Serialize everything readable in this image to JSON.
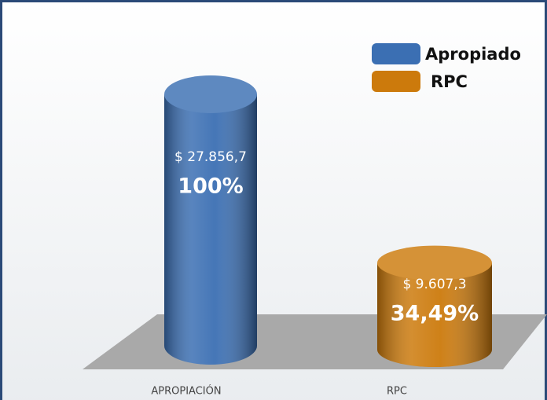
{
  "chart_data": {
    "type": "cylinder",
    "categories": [
      "APROPIACIÓN",
      "RPC"
    ],
    "series": [
      {
        "name": "Apropiado",
        "color": "#3b6fb3",
        "values": [
          27856.7,
          null
        ],
        "value_labels": [
          "$ 27.856,7",
          null
        ],
        "percentages": [
          100,
          null
        ],
        "percentage_labels": [
          "100%",
          null
        ]
      },
      {
        "name": "RPC",
        "color": "#cc7a0c",
        "values": [
          null,
          9607.3
        ],
        "value_labels": [
          null,
          "$ 9.607,3"
        ],
        "percentages": [
          null,
          34.49
        ],
        "percentage_labels": [
          null,
          "34,49%"
        ]
      }
    ],
    "legend": "top-right"
  }
}
